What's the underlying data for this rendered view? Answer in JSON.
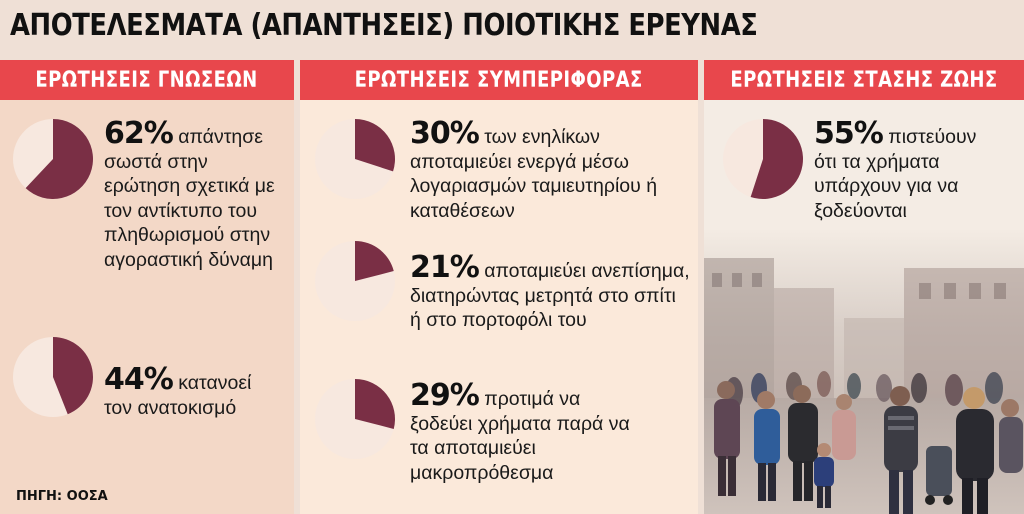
{
  "title": "ΑΠΟΤΕΛΕΣΜΑΤΑ (ΑΠΑΝΤΗΣΕΙΣ) ΠΟΙΟΤΙΚΗΣ ΕΡΕΥΝΑΣ",
  "source": "ΠΗΓΗ: ΟΟΣΑ",
  "colors": {
    "header_red": "#e8474c",
    "pie_dark": "#7a2f45",
    "pie_light": "#f7e8df"
  },
  "sections": [
    {
      "header": "ΕΡΩΤΗΣΕΙΣ ΓΝΩΣΕΩΝ",
      "items": [
        {
          "percent": "62%",
          "value": 62,
          "text": "απάντησε σωστά στην ερώτηση σχετικά με τον αντίκτυπο του πληθωρισμού στην αγοραστική δύναμη"
        },
        {
          "percent": "44%",
          "value": 44,
          "text": "κατανοεί τον ανατοκισμό"
        }
      ]
    },
    {
      "header": "ΕΡΩΤΗΣΕΙΣ ΣΥΜΠΕΡΙΦΟΡΑΣ",
      "items": [
        {
          "percent": "30%",
          "value": 30,
          "text": "των ενηλίκων αποταμιεύει ενεργά μέσω λογαριασμών ταμιευτηρίου ή καταθέσεων"
        },
        {
          "percent": "21%",
          "value": 21,
          "text": "αποταμιεύει ανεπίσημα, διατηρώντας μετρητά στο σπίτι ή στο πορτοφόλι του"
        },
        {
          "percent": "29%",
          "value": 29,
          "text": "προτιμά να ξοδεύει χρήματα παρά να τα αποταμιεύει μακροπρόθεσμα"
        }
      ]
    },
    {
      "header": "ΕΡΩΤΗΣΕΙΣ ΣΤΑΣΗΣ ΖΩΗΣ",
      "items": [
        {
          "percent": "55%",
          "value": 55,
          "text": "πιστεύουν ότι τα χρήματα υπάρχουν για να ξοδεύονται"
        }
      ]
    }
  ]
}
